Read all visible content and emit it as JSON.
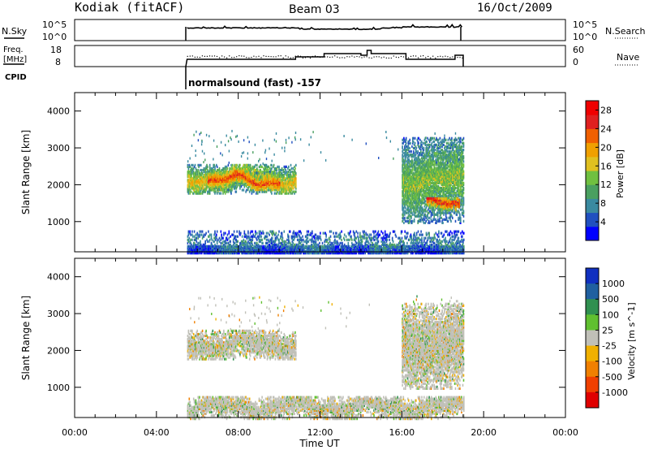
{
  "header": {
    "station": "Kodiak (fitACF)",
    "beam": "Beam 03",
    "date": "16/Oct/2009"
  },
  "noise_panel": {
    "left_label": "N.Sky",
    "right_label": "N.Search",
    "left_ticks": [
      "10^5",
      "10^0"
    ],
    "right_ticks": [
      "10^5",
      "10^0"
    ]
  },
  "freq_panel": {
    "left_label_line1": "Freq.",
    "left_label_line2": "[MHz]",
    "right_label": "Nave",
    "left_ticks": [
      "18",
      "8"
    ],
    "right_ticks": [
      "60",
      "0"
    ]
  },
  "cpid": {
    "label": "CPID",
    "program": "normalsound (fast) -157"
  },
  "colors": {
    "power_scale": [
      "#0000ff",
      "#2050c0",
      "#3a8aa0",
      "#4aa060",
      "#70c040",
      "#e0c020",
      "#f0a000",
      "#f06000",
      "#e02020",
      "#f00000"
    ],
    "velocity_scale": [
      "#1030c0",
      "#2060a0",
      "#309050",
      "#60c030",
      "#c0c0b8",
      "#f0b000",
      "#f08000",
      "#f04000",
      "#e00000"
    ],
    "ground_scatter": "#c0c0b8"
  },
  "chart_data": [
    {
      "type": "heatmap",
      "panel": "power",
      "ylabel": "Slant Range [km]",
      "xlabel": "Time UT",
      "x_ticks": [
        "00:00",
        "04:00",
        "08:00",
        "12:00",
        "16:00",
        "20:00",
        "00:00"
      ],
      "x_range_hours": [
        0,
        24
      ],
      "y_ticks": [
        "1000",
        "2000",
        "3000",
        "4000"
      ],
      "y_range_km": [
        180,
        4500
      ],
      "colorbar_label": "Power [dB]",
      "colorbar_ticks": [
        "4",
        "8",
        "12",
        "16",
        "20",
        "24",
        "28"
      ],
      "colorbar_range": [
        0,
        30
      ],
      "data_window_hours": [
        5.5,
        19.0
      ],
      "echo_regions": [
        {
          "t_start": 5.5,
          "t_end": 10.8,
          "r_min": 1800,
          "r_max": 2600,
          "power_dB": 18
        },
        {
          "t_start": 6.5,
          "t_end": 10.0,
          "r_min": 1900,
          "r_max": 2400,
          "power_dB": 24
        },
        {
          "t_start": 16.0,
          "t_end": 19.0,
          "r_min": 1000,
          "r_max": 3300,
          "power_dB": 14
        },
        {
          "t_start": 17.2,
          "t_end": 18.8,
          "r_min": 1300,
          "r_max": 1700,
          "power_dB": 26
        },
        {
          "t_start": 5.5,
          "t_end": 19.0,
          "r_min": 180,
          "r_max": 800,
          "power_dB": 8
        }
      ]
    },
    {
      "type": "heatmap",
      "panel": "velocity",
      "ylabel": "Slant Range [km]",
      "xlabel": "Time UT",
      "x_ticks": [
        "00:00",
        "04:00",
        "08:00",
        "12:00",
        "16:00",
        "20:00",
        "00:00"
      ],
      "x_range_hours": [
        0,
        24
      ],
      "y_ticks": [
        "1000",
        "2000",
        "3000",
        "4000"
      ],
      "y_range_km": [
        180,
        4500
      ],
      "colorbar_label": "Velocity [m s^-1]",
      "colorbar_ticks": [
        "1000",
        "500",
        "100",
        "25",
        "-25",
        "-100",
        "-500",
        "-1000"
      ],
      "data_window_hours": [
        5.5,
        19.0
      ],
      "echo_regions": [
        {
          "t_start": 5.5,
          "t_end": 10.8,
          "r_min": 1800,
          "r_max": 2600,
          "velocity": 0
        },
        {
          "t_start": 16.0,
          "t_end": 19.0,
          "r_min": 1000,
          "r_max": 3300,
          "velocity": 0
        },
        {
          "t_start": 5.5,
          "t_end": 19.0,
          "r_min": 180,
          "r_max": 800,
          "velocity": 0
        }
      ]
    }
  ]
}
